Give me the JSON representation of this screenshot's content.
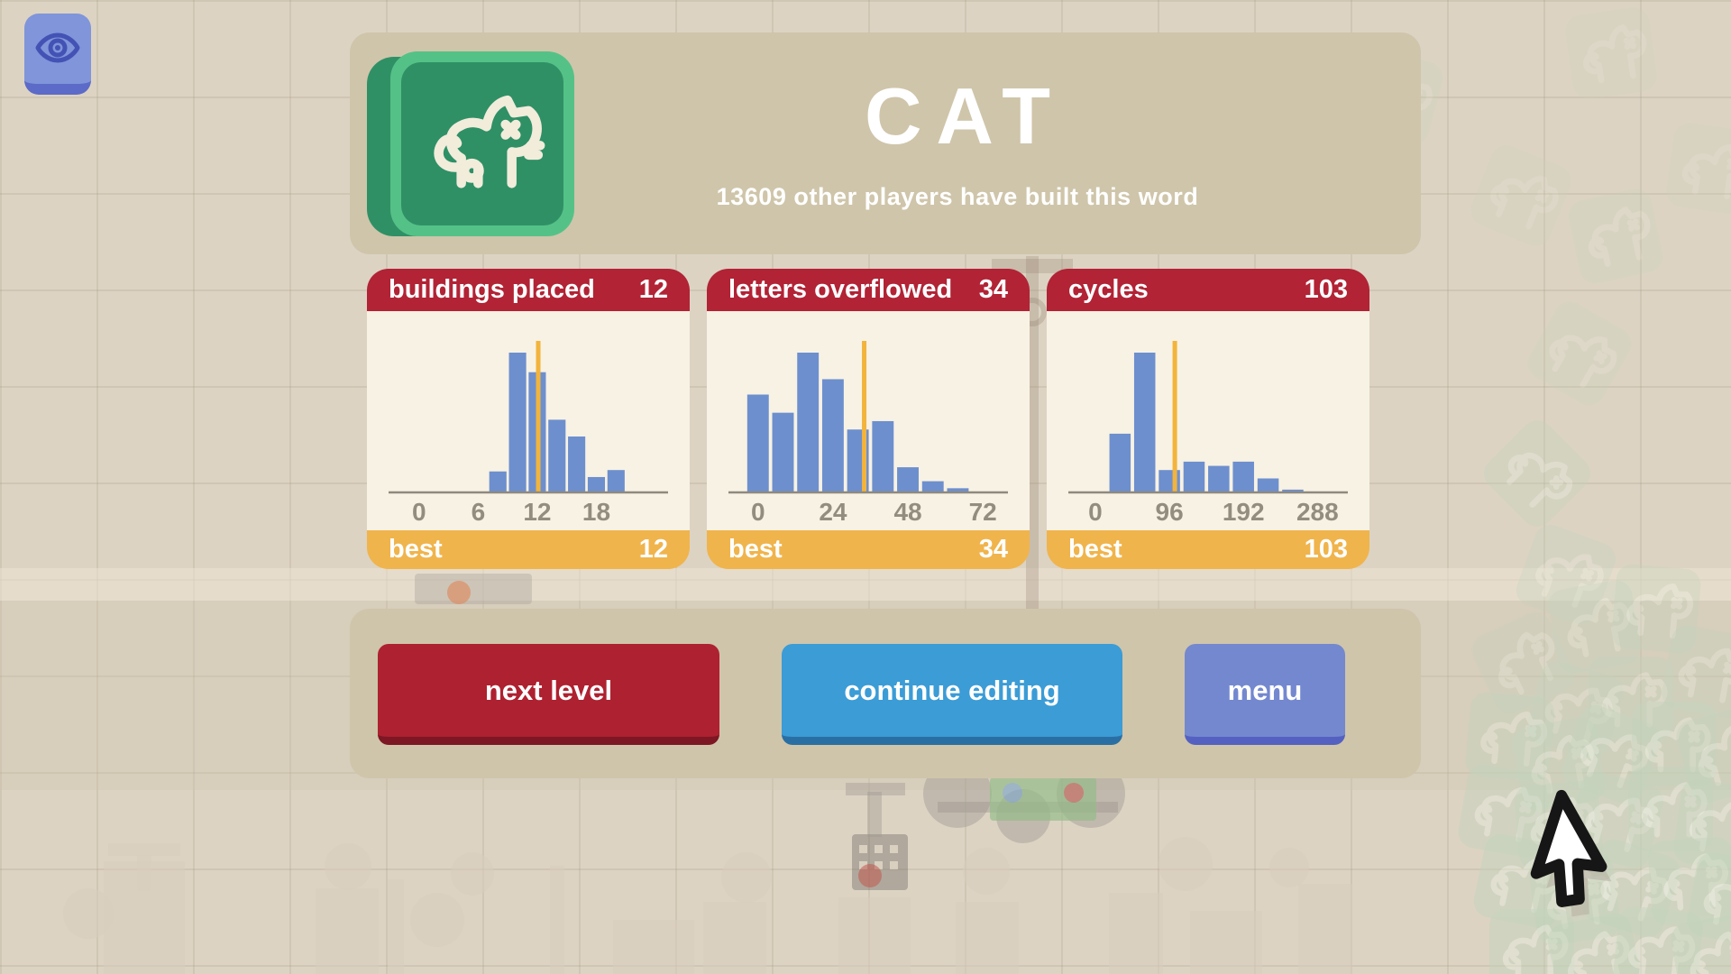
{
  "page": {
    "title_word": "CAT",
    "subtitle": "13609 other players have built this word"
  },
  "eye_button": {
    "icon": "eye-icon"
  },
  "stats_cards": [
    {
      "title": "buildings placed",
      "value": "12",
      "best_label": "best",
      "best_value": "12"
    },
    {
      "title": "letters overflowed",
      "value": "34",
      "best_label": "best",
      "best_value": "34"
    },
    {
      "title": "cycles",
      "value": "103",
      "best_label": "best",
      "best_value": "103"
    }
  ],
  "chart_data": [
    {
      "type": "bar",
      "title": "buildings placed",
      "player_value": 12,
      "best": 12,
      "x_ticks": [
        0,
        6,
        12,
        18
      ],
      "axis_range": [
        -2,
        24
      ],
      "bin_centers": [
        8,
        10,
        12,
        14,
        16,
        18,
        20
      ],
      "bar_heights_rel": [
        0.15,
        1.0,
        0.86,
        0.52,
        0.4,
        0.11,
        0.16
      ],
      "bar_width_units": 1.75,
      "marker_value": 12.1,
      "grid": false,
      "legend": false
    },
    {
      "type": "bar",
      "title": "letters overflowed",
      "player_value": 34,
      "best": 34,
      "x_ticks": [
        0,
        24,
        48,
        72
      ],
      "axis_range": [
        -6,
        76
      ],
      "bin_centers": [
        0,
        8,
        16,
        24,
        32,
        40,
        48,
        56,
        64
      ],
      "bar_heights_rel": [
        0.7,
        0.57,
        1.0,
        0.81,
        0.45,
        0.51,
        0.18,
        0.08,
        0.03
      ],
      "bar_width_units": 6.9,
      "marker_value": 34,
      "grid": false,
      "legend": false
    },
    {
      "type": "bar",
      "title": "cycles",
      "player_value": 103,
      "best": 103,
      "x_ticks": [
        0,
        96,
        192,
        288
      ],
      "axis_range": [
        -21,
        311
      ],
      "bin_centers": [
        32,
        64,
        96,
        128,
        160,
        192,
        224,
        256
      ],
      "bar_heights_rel": [
        0.42,
        1.0,
        0.16,
        0.22,
        0.19,
        0.22,
        0.1,
        0.02
      ],
      "bar_width_units": 27.5,
      "marker_value": 103,
      "grid": false,
      "legend": false
    }
  ],
  "buttons": {
    "next_level": "next level",
    "continue_editing": "continue editing",
    "menu": "menu"
  },
  "colors": {
    "page_bg": "#dcd3c3",
    "panel_tan": "#cfc5aa",
    "card_header_red": "#b12335",
    "card_body_cream": "#f8f2e4",
    "card_footer_orange": "#f0b44c",
    "bar_blue": "#6d8fce",
    "marker_orange": "#f2b43c",
    "axis_gray": "#8f8a7f",
    "tick_text": "#938d80",
    "button_red": "#ae2130",
    "button_blue": "#3b9cd6",
    "button_periwinkle": "#7488cf",
    "eye_button_blue": "#8095da",
    "tile_green_light": "#54c286",
    "tile_green_dark": "#2f9066",
    "cat_glyph_cream": "#f2ecdb"
  }
}
